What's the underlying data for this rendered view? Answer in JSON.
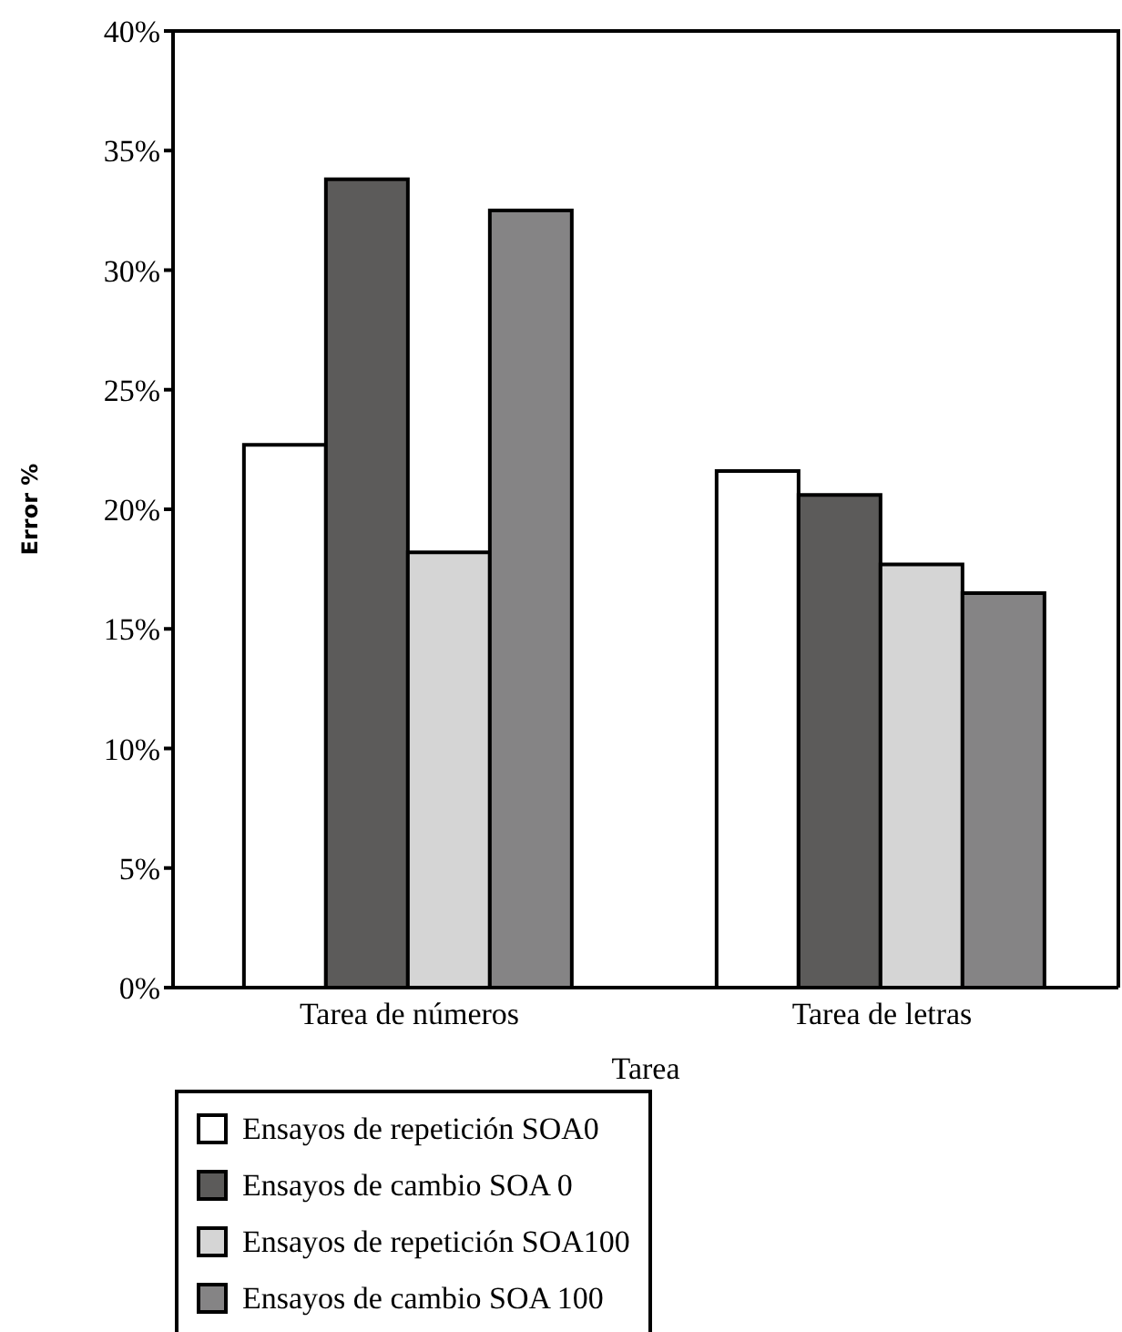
{
  "chart_data": {
    "type": "bar",
    "xlabel": "Tarea",
    "ylabel": "Error %",
    "categories": [
      "Tarea de números",
      "Tarea de letras"
    ],
    "series": [
      {
        "name": "Ensayos de repetición SOA0",
        "color": "#ffffff",
        "values": [
          22.7,
          21.6
        ]
      },
      {
        "name": "Ensayos de cambio SOA 0",
        "color": "#5c5b5a",
        "values": [
          33.8,
          20.6
        ]
      },
      {
        "name": "Ensayos de repetición SOA100",
        "color": "#d5d5d5",
        "values": [
          18.2,
          17.7
        ]
      },
      {
        "name": "Ensayos de cambio SOA 100",
        "color": "#858485",
        "values": [
          32.5,
          16.5
        ]
      }
    ],
    "ylim": [
      0,
      40
    ],
    "yticks": [
      {
        "value": 0,
        "label": "0%"
      },
      {
        "value": 5,
        "label": "5%"
      },
      {
        "value": 10,
        "label": "10%"
      },
      {
        "value": 15,
        "label": "15%"
      },
      {
        "value": 20,
        "label": "20%"
      },
      {
        "value": 25,
        "label": "25%"
      },
      {
        "value": 30,
        "label": "30%"
      },
      {
        "value": 35,
        "label": "35%"
      },
      {
        "value": 40,
        "label": "40%"
      }
    ],
    "grid": false,
    "legend": "bottom"
  }
}
